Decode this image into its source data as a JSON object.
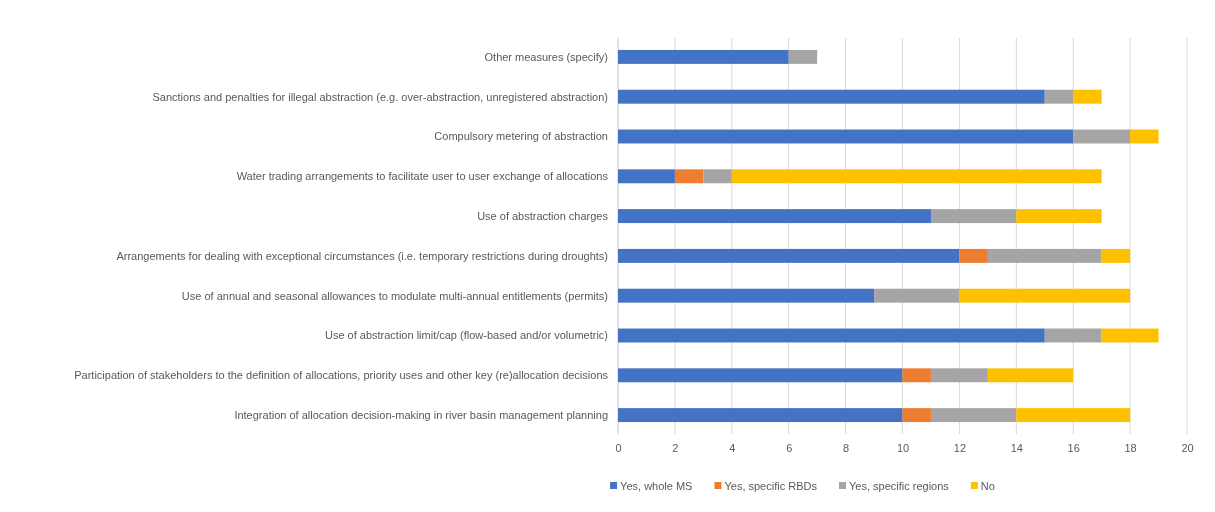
{
  "chart_data": {
    "type": "bar",
    "orientation": "horizontal",
    "stacked": true,
    "categories": [
      "Other measures (specify)",
      "Sanctions and penalties for illegal abstraction (e.g. over-abstraction, unregistered abstraction)",
      "Compulsory metering of abstraction",
      "Water trading arrangements to facilitate user to user exchange of allocations",
      "Use of abstraction charges",
      "Arrangements for dealing with exceptional circumstances (i.e. temporary restrictions during droughts)",
      "Use of annual and seasonal allowances to modulate multi-annual entitlements (permits)",
      "Use of abstraction limit/cap (flow-based and/or volumetric)",
      "Participation of stakeholders to the definition of allocations, priority uses and other key (re)allocation decisions",
      "Integration of allocation decision-making in river basin management planning"
    ],
    "series": [
      {
        "name": "Yes, whole MS",
        "color": "#4472c4",
        "values": [
          6,
          15,
          16,
          2,
          11,
          12,
          9,
          15,
          10,
          10
        ]
      },
      {
        "name": "Yes, specific RBDs",
        "color": "#ed7d31",
        "values": [
          0,
          0,
          0,
          1,
          0,
          1,
          0,
          0,
          1,
          1
        ]
      },
      {
        "name": "Yes, specific regions",
        "color": "#a5a5a5",
        "values": [
          1,
          1,
          2,
          1,
          3,
          4,
          3,
          2,
          2,
          3
        ]
      },
      {
        "name": "No",
        "color": "#ffc000",
        "values": [
          0,
          1,
          1,
          13,
          3,
          1,
          6,
          2,
          3,
          4
        ]
      }
    ],
    "xlim": [
      0,
      20
    ],
    "xticks": [
      0,
      2,
      4,
      6,
      8,
      10,
      12,
      14,
      16,
      18,
      20
    ],
    "grid": "x",
    "legend": "bottom"
  }
}
